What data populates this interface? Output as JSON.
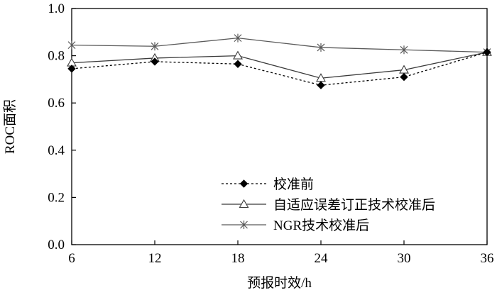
{
  "chart_data": {
    "type": "line",
    "title": "",
    "xlabel": "预报时效/h",
    "ylabel": "ROC面积",
    "x": [
      6,
      12,
      18,
      24,
      30,
      36
    ],
    "x_ticks": [
      "6",
      "12",
      "18",
      "24",
      "30",
      "36"
    ],
    "y_ticks": [
      "0.0",
      "0.2",
      "0.4",
      "0.6",
      "0.8",
      "1.0"
    ],
    "xlim": [
      6,
      36
    ],
    "ylim": [
      0.0,
      1.0
    ],
    "grid": false,
    "legend_position": "bottom-right",
    "series": [
      {
        "name": "校准前",
        "values": [
          0.745,
          0.775,
          0.765,
          0.675,
          0.71,
          0.815
        ],
        "marker": "diamond-filled",
        "line_style": "dotted",
        "color": "#000000"
      },
      {
        "name": "自适应误差订正技术校准后",
        "values": [
          0.77,
          0.79,
          0.8,
          0.705,
          0.74,
          0.815
        ],
        "marker": "triangle-open",
        "line_style": "solid",
        "color": "#3a3a3a"
      },
      {
        "name": "NGR技术校准后",
        "values": [
          0.845,
          0.84,
          0.875,
          0.835,
          0.825,
          0.815
        ],
        "marker": "star-cross",
        "line_style": "solid",
        "color": "#5a5a5a"
      }
    ]
  }
}
